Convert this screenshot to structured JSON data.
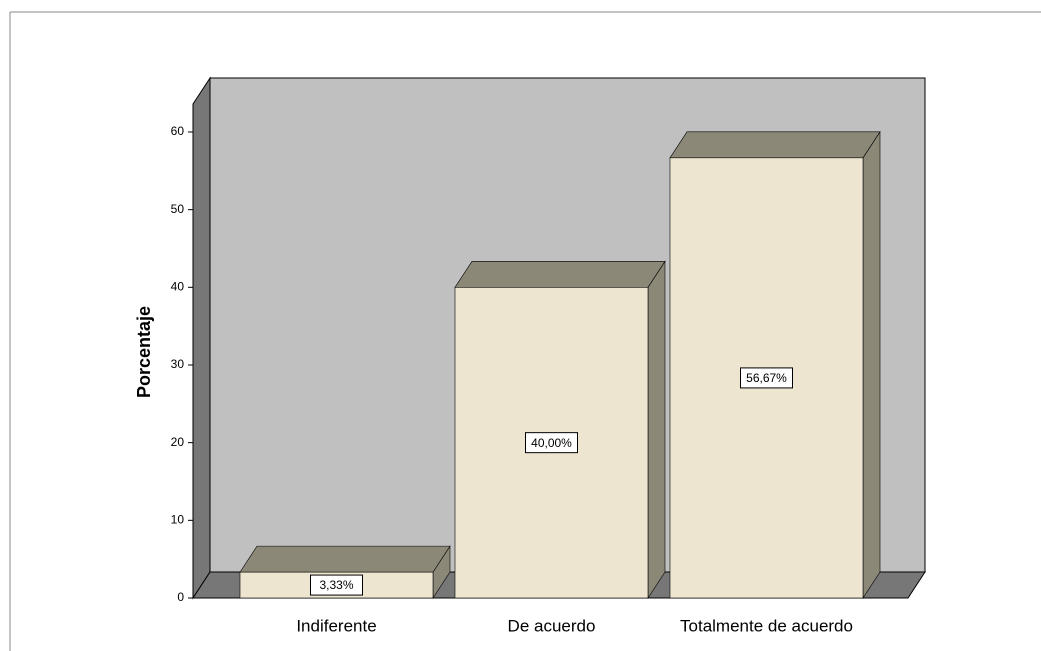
{
  "chart_data": {
    "type": "bar3d",
    "y_label": "Porcentaje",
    "categories": [
      "Indiferente",
      "De acuerdo",
      "Totalmente de acuerdo"
    ],
    "values": [
      3.33,
      40.0,
      56.67
    ],
    "value_labels": [
      "3,33%",
      "40,00%",
      "56,67%"
    ],
    "color": "#ede5d0",
    "ylim": [
      0,
      67
    ],
    "yticks": [
      0,
      10,
      20,
      30,
      40,
      50,
      60
    ]
  }
}
